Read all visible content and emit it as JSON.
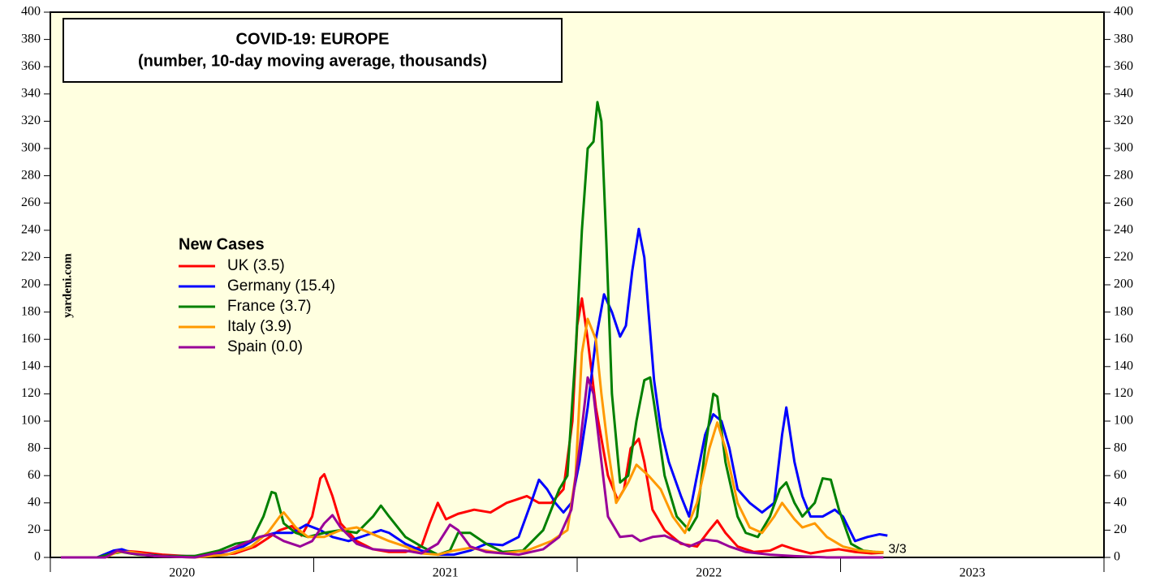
{
  "chart_data": {
    "type": "line",
    "title": "COVID-19: EUROPE",
    "subtitle": "(number, 10-day moving average, thousands)",
    "legend_title": "New Cases",
    "source": "yardeni.com",
    "annotation": {
      "text": "3/3",
      "x": 2023.163,
      "color": "#ff0000"
    },
    "xlim": [
      2020,
      2024
    ],
    "xticks": [
      {
        "value": 2020,
        "label": "2020"
      },
      {
        "value": 2021,
        "label": "2021"
      },
      {
        "value": 2022,
        "label": "2022"
      },
      {
        "value": 2023,
        "label": "2023"
      }
    ],
    "ylim": [
      0,
      400
    ],
    "yticks": [
      0,
      20,
      40,
      60,
      80,
      100,
      120,
      140,
      160,
      180,
      200,
      220,
      240,
      260,
      280,
      300,
      320,
      340,
      360,
      380,
      400
    ],
    "legend": "upper left",
    "series": [
      {
        "name": "UK (3.5)",
        "color": "#ff0000",
        "x": [
          2020.04,
          2020.178,
          2020.24,
          2020.271,
          2020.332,
          2020.425,
          2020.517,
          2020.609,
          2020.702,
          2020.778,
          2020.825,
          2020.871,
          2020.917,
          2020.954,
          2020.994,
          2021.025,
          2021.04,
          2021.071,
          2021.102,
          2021.163,
          2021.225,
          2021.286,
          2021.348,
          2021.409,
          2021.44,
          2021.471,
          2021.502,
          2021.548,
          2021.609,
          2021.671,
          2021.732,
          2021.809,
          2021.855,
          2021.902,
          2021.948,
          2021.982,
          2022.0,
          2022.018,
          2022.04,
          2022.071,
          2022.117,
          2022.154,
          2022.178,
          2022.203,
          2022.234,
          2022.255,
          2022.286,
          2022.332,
          2022.394,
          2022.455,
          2022.502,
          2022.532,
          2022.563,
          2022.609,
          2022.671,
          2022.732,
          2022.778,
          2022.825,
          2022.886,
          2022.948,
          2022.994,
          2023.055,
          2023.117,
          2023.163
        ],
        "values": [
          0,
          0,
          3,
          5,
          4,
          2,
          1,
          1,
          3,
          8,
          14,
          20,
          23,
          16,
          30,
          58,
          61,
          45,
          25,
          12,
          6,
          4,
          4,
          8,
          25,
          40,
          28,
          32,
          35,
          33,
          40,
          45,
          40,
          40,
          50,
          100,
          170,
          190,
          160,
          110,
          60,
          42,
          50,
          80,
          87,
          70,
          35,
          20,
          10,
          8,
          20,
          27,
          18,
          8,
          4,
          5,
          9,
          6,
          3,
          5,
          6,
          4,
          3,
          3.5
        ]
      },
      {
        "name": "Germany (15.4)",
        "color": "#0000ff",
        "x": [
          2020.04,
          2020.178,
          2020.24,
          2020.271,
          2020.317,
          2020.425,
          2020.548,
          2020.64,
          2020.732,
          2020.794,
          2020.855,
          2020.917,
          2020.972,
          2021.025,
          2021.071,
          2021.132,
          2021.194,
          2021.255,
          2021.286,
          2021.348,
          2021.409,
          2021.471,
          2021.532,
          2021.594,
          2021.655,
          2021.717,
          2021.778,
          2021.825,
          2021.855,
          2021.886,
          2021.917,
          2021.948,
          2021.978,
          2022.009,
          2022.04,
          2022.071,
          2022.102,
          2022.132,
          2022.163,
          2022.185,
          2022.209,
          2022.234,
          2022.255,
          2022.271,
          2022.292,
          2022.317,
          2022.348,
          2022.394,
          2022.425,
          2022.455,
          2022.486,
          2022.517,
          2022.548,
          2022.578,
          2022.609,
          2022.655,
          2022.702,
          2022.748,
          2022.778,
          2022.794,
          2022.825,
          2022.855,
          2022.886,
          2022.932,
          2022.978,
          2023.009,
          2023.055,
          2023.102,
          2023.148,
          2023.178
        ],
        "values": [
          0,
          0,
          5,
          6,
          3,
          1,
          1,
          3,
          8,
          15,
          18,
          18,
          24,
          20,
          15,
          12,
          16,
          20,
          18,
          10,
          5,
          2,
          2,
          5,
          10,
          9,
          15,
          40,
          57,
          50,
          40,
          33,
          40,
          70,
          110,
          160,
          193,
          180,
          162,
          170,
          210,
          241,
          220,
          180,
          130,
          95,
          70,
          45,
          30,
          60,
          90,
          105,
          100,
          80,
          50,
          40,
          33,
          40,
          90,
          110,
          70,
          45,
          30,
          30,
          35,
          30,
          12,
          15,
          17,
          16
        ]
      },
      {
        "name": "France (3.7)",
        "color": "#008000",
        "x": [
          2020.04,
          2020.178,
          2020.24,
          2020.271,
          2020.332,
          2020.425,
          2020.548,
          2020.64,
          2020.702,
          2020.763,
          2020.809,
          2020.84,
          2020.855,
          2020.886,
          2020.932,
          2020.978,
          2021.04,
          2021.102,
          2021.163,
          2021.225,
          2021.255,
          2021.286,
          2021.348,
          2021.409,
          2021.471,
          2021.517,
          2021.548,
          2021.594,
          2021.655,
          2021.717,
          2021.794,
          2021.871,
          2021.932,
          2021.963,
          2021.994,
          2022.018,
          2022.04,
          2022.062,
          2022.077,
          2022.092,
          2022.111,
          2022.132,
          2022.163,
          2022.194,
          2022.225,
          2022.255,
          2022.277,
          2022.302,
          2022.332,
          2022.378,
          2022.425,
          2022.455,
          2022.486,
          2022.517,
          2022.532,
          2022.563,
          2022.609,
          2022.64,
          2022.686,
          2022.732,
          2022.769,
          2022.794,
          2022.825,
          2022.855,
          2022.902,
          2022.932,
          2022.963,
          2022.994,
          2023.04,
          2023.086,
          2023.132,
          2023.163
        ],
        "values": [
          0,
          0,
          3,
          4,
          2,
          1,
          1,
          5,
          10,
          12,
          30,
          48,
          47,
          25,
          18,
          15,
          18,
          20,
          18,
          30,
          38,
          30,
          15,
          8,
          2,
          5,
          18,
          18,
          10,
          4,
          5,
          20,
          50,
          60,
          150,
          240,
          300,
          305,
          334,
          320,
          230,
          120,
          55,
          60,
          100,
          130,
          132,
          100,
          60,
          30,
          20,
          30,
          80,
          120,
          118,
          70,
          30,
          18,
          15,
          30,
          50,
          55,
          40,
          30,
          40,
          58,
          57,
          35,
          10,
          5,
          4,
          3.7
        ]
      },
      {
        "name": "Italy (3.9)",
        "color": "#ff9900",
        "x": [
          2020.04,
          2020.209,
          2020.255,
          2020.302,
          2020.394,
          2020.548,
          2020.671,
          2020.763,
          2020.825,
          2020.871,
          2020.886,
          2020.932,
          2020.978,
          2021.04,
          2021.102,
          2021.163,
          2021.225,
          2021.286,
          2021.348,
          2021.409,
          2021.471,
          2021.532,
          2021.594,
          2021.655,
          2021.717,
          2021.809,
          2021.902,
          2021.963,
          2021.994,
          2022.018,
          2022.04,
          2022.071,
          2022.092,
          2022.117,
          2022.148,
          2022.194,
          2022.225,
          2022.271,
          2022.317,
          2022.363,
          2022.409,
          2022.455,
          2022.502,
          2022.532,
          2022.563,
          2022.609,
          2022.655,
          2022.702,
          2022.748,
          2022.778,
          2022.825,
          2022.855,
          2022.902,
          2022.948,
          2023.009,
          2023.071,
          2023.132,
          2023.163
        ],
        "values": [
          0,
          0,
          4,
          4,
          1,
          0,
          2,
          8,
          18,
          30,
          33,
          22,
          15,
          15,
          20,
          22,
          17,
          12,
          8,
          3,
          2,
          5,
          7,
          5,
          3,
          5,
          12,
          20,
          60,
          150,
          175,
          160,
          120,
          80,
          40,
          55,
          68,
          60,
          50,
          30,
          18,
          40,
          80,
          99,
          80,
          40,
          22,
          18,
          30,
          40,
          28,
          22,
          25,
          15,
          8,
          5,
          4,
          3.9
        ]
      },
      {
        "name": "Spain (0.0)",
        "color": "#990099",
        "x": [
          2020.04,
          2020.209,
          2020.255,
          2020.302,
          2020.394,
          2020.548,
          2020.671,
          2020.732,
          2020.794,
          2020.84,
          2020.886,
          2020.948,
          2020.994,
          2021.04,
          2021.071,
          2021.102,
          2021.163,
          2021.225,
          2021.286,
          2021.348,
          2021.409,
          2021.471,
          2021.517,
          2021.548,
          2021.594,
          2021.655,
          2021.778,
          2021.871,
          2021.932,
          2021.978,
          2022.009,
          2022.04,
          2022.062,
          2022.086,
          2022.117,
          2022.163,
          2022.209,
          2022.24,
          2022.286,
          2022.332,
          2022.378,
          2022.425,
          2022.486,
          2022.532,
          2022.578,
          2022.64,
          2022.732,
          2022.825,
          2022.948,
          2023.071,
          2023.163
        ],
        "values": [
          0,
          0,
          5,
          3,
          1,
          0,
          5,
          10,
          15,
          17,
          12,
          8,
          12,
          25,
          31,
          22,
          10,
          6,
          5,
          5,
          3,
          10,
          24,
          20,
          8,
          4,
          2,
          6,
          15,
          35,
          80,
          132,
          120,
          80,
          30,
          15,
          16,
          12,
          15,
          16,
          12,
          8,
          13,
          12,
          8,
          4,
          2,
          1,
          0,
          0,
          0
        ]
      }
    ]
  }
}
